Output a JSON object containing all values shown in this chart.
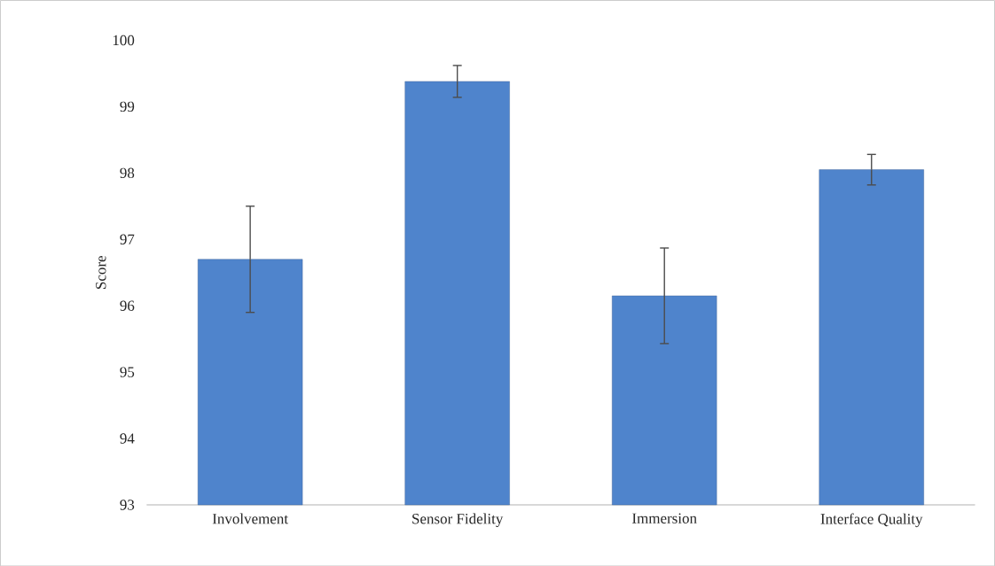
{
  "chart_data": {
    "type": "bar",
    "ylabel": "Score",
    "categories": [
      "Involvement",
      "Sensor Fidelity",
      "Immersion",
      "Interface Quality"
    ],
    "values": [
      96.7,
      99.38,
      96.15,
      98.05
    ],
    "errors": [
      0.8,
      0.24,
      0.72,
      0.23
    ],
    "color": "#4f84cc",
    "ylim": [
      93,
      100
    ],
    "yticks": [
      93,
      94,
      95,
      96,
      97,
      98,
      99,
      100
    ],
    "grid": false
  }
}
